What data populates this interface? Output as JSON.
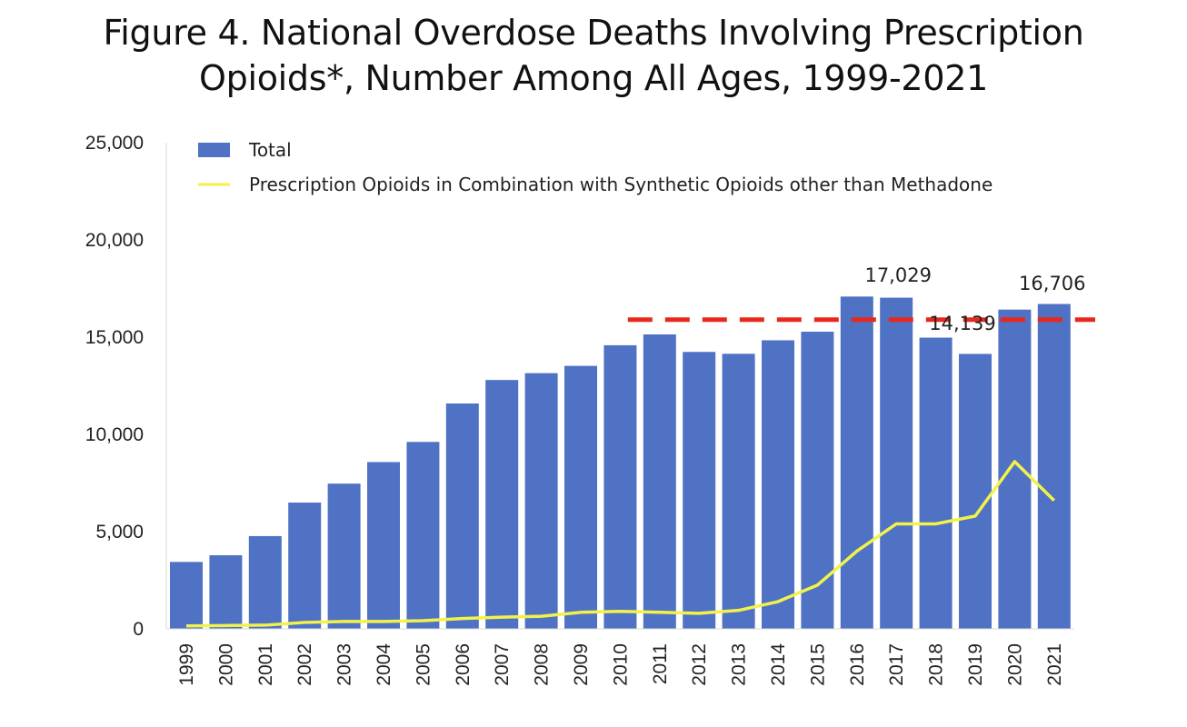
{
  "chart_data": {
    "type": "bar",
    "title_lines": [
      "Figure 4. National Overdose Deaths Involving Prescription",
      "Opioids*, Number Among All Ages, 1999-2021"
    ],
    "categories": [
      "1999",
      "2000",
      "2001",
      "2002",
      "2003",
      "2004",
      "2005",
      "2006",
      "2007",
      "2008",
      "2009",
      "2010",
      "2011",
      "2012",
      "2013",
      "2014",
      "2015",
      "2016",
      "2017",
      "2018",
      "2019",
      "2020",
      "2021"
    ],
    "series": [
      {
        "name": "Total",
        "kind": "bar",
        "color": "#4f72c4",
        "values": [
          3442,
          3785,
          4770,
          6493,
          7467,
          8576,
          9612,
          11589,
          12796,
          13149,
          13523,
          14583,
          15140,
          14240,
          14145,
          14838,
          15281,
          17087,
          17029,
          14975,
          14139,
          16416,
          16706
        ]
      },
      {
        "name": "Prescription Opioids in Combination with Synthetic Opioids other than Methadone",
        "kind": "line",
        "color": "#f2f24a",
        "values": [
          150,
          170,
          190,
          330,
          380,
          380,
          420,
          530,
          600,
          650,
          850,
          900,
          850,
          800,
          950,
          1400,
          2250,
          4000,
          5400,
          5400,
          5800,
          8600,
          6600
        ]
      }
    ],
    "data_labels": [
      {
        "category": "2017",
        "text": "17,029"
      },
      {
        "category": "2019",
        "text": "14,139"
      },
      {
        "category": "2021",
        "text": "16,706"
      }
    ],
    "ylim": [
      0,
      25000
    ],
    "yticks": [
      {
        "value": 0,
        "label": "0"
      },
      {
        "value": 5000,
        "label": "5,000"
      },
      {
        "value": 10000,
        "label": "10,000"
      },
      {
        "value": 15000,
        "label": "15,000"
      },
      {
        "value": 20000,
        "label": "20,000"
      },
      {
        "value": 25000,
        "label": "25,000"
      }
    ],
    "reference_line": {
      "value": 15900,
      "color": "#e8281c",
      "style": "dashed",
      "from_category": "2011"
    },
    "grid": false,
    "legend_position": "top-left",
    "xlabel": "",
    "ylabel": ""
  }
}
